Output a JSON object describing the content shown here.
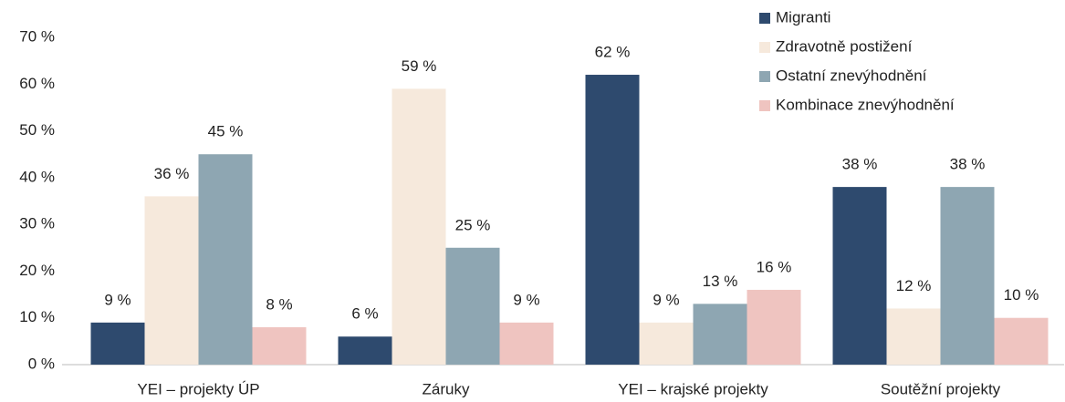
{
  "chart_data": {
    "type": "bar",
    "categories": [
      "YEI – projekty ÚP",
      "Záruky",
      "YEI – krajské projekty",
      "Soutěžní projekty"
    ],
    "series": [
      {
        "name": "Migranti",
        "color": "#2e4a6e",
        "values": [
          9,
          6,
          62,
          38
        ],
        "value_labels": [
          "9 %",
          "6 %",
          "62 %",
          "38 %"
        ]
      },
      {
        "name": "Zdravotně postižení",
        "color": "#f6e9dc",
        "values": [
          36,
          59,
          9,
          12
        ],
        "value_labels": [
          "36 %",
          "59 %",
          "9 %",
          "12 %"
        ]
      },
      {
        "name": "Ostatní znevýhodnění",
        "color": "#8ea6b2",
        "values": [
          45,
          25,
          13,
          38
        ],
        "value_labels": [
          "45 %",
          "25 %",
          "13 %",
          "38 %"
        ]
      },
      {
        "name": "Kombinace znevýhodnění",
        "color": "#efc4c0",
        "values": [
          8,
          9,
          16,
          10
        ],
        "value_labels": [
          "8 %",
          "9 %",
          "16 %",
          "10 %"
        ]
      }
    ],
    "ylim": [
      0,
      70
    ],
    "yticks": [
      {
        "value": 0,
        "label": "0 %"
      },
      {
        "value": 10,
        "label": "10 %"
      },
      {
        "value": 20,
        "label": "20 %"
      },
      {
        "value": 30,
        "label": "30 %"
      },
      {
        "value": 40,
        "label": "40 %"
      },
      {
        "value": 50,
        "label": "50 %"
      },
      {
        "value": 60,
        "label": "60 %"
      },
      {
        "value": 70,
        "label": "70 %"
      }
    ],
    "grid": false,
    "legend": "top-right"
  }
}
